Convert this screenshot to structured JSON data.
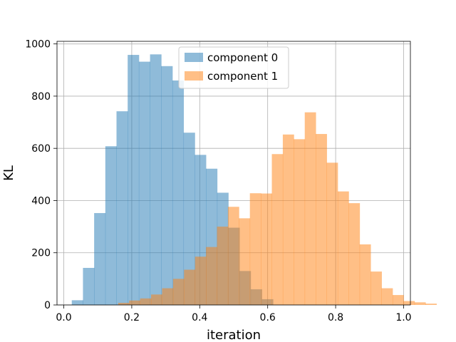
{
  "chart_data": {
    "type": "bar",
    "subtype": "histogram",
    "xlabel": "iteration",
    "ylabel": "KL",
    "xlim": [
      -0.02,
      1.02
    ],
    "ylim": [
      0,
      1010
    ],
    "xticks": [
      0.0,
      0.2,
      0.4,
      0.6,
      0.8,
      1.0
    ],
    "xtick_labels": [
      "0.0",
      "0.2",
      "0.4",
      "0.6",
      "0.8",
      "1.0"
    ],
    "yticks": [
      0,
      200,
      400,
      600,
      800,
      1000
    ],
    "ytick_labels": [
      "0",
      "200",
      "400",
      "600",
      "800",
      "1000"
    ],
    "grid": true,
    "legend_position": "upper-center",
    "series": [
      {
        "name": "component 0",
        "color": "#1f77b4",
        "alpha": 0.5,
        "bin_start": 0.0235,
        "bin_width": 0.0329,
        "counts": [
          18,
          142,
          352,
          608,
          742,
          958,
          932,
          960,
          915,
          860,
          660,
          575,
          522,
          430,
          296,
          130,
          60,
          22,
          0,
          0,
          0,
          0,
          0,
          0,
          0,
          0,
          0,
          0,
          0,
          0
        ]
      },
      {
        "name": "component 1",
        "color": "#ff7f0e",
        "alpha": 0.5,
        "bin_start": 0.16,
        "bin_width": 0.0323,
        "counts": [
          8,
          17,
          25,
          40,
          64,
          100,
          135,
          185,
          222,
          300,
          376,
          332,
          428,
          427,
          578,
          653,
          635,
          738,
          655,
          545,
          435,
          390,
          232,
          128,
          64,
          38,
          15,
          10,
          5
        ]
      }
    ]
  }
}
